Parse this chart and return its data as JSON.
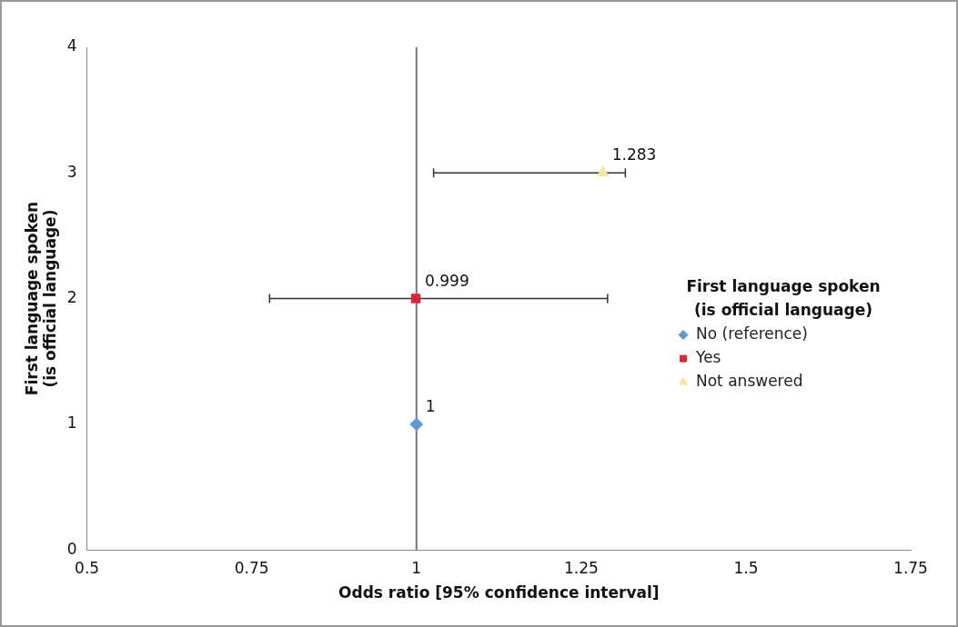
{
  "chart_data": {
    "type": "scatter",
    "xlabel": "Odds ratio [95% confidence interval]",
    "ylabel": "First language spoken\n(is official language)",
    "legend_title": "First language spoken\n(is official language)",
    "legend": "right",
    "xlim": [
      0.5,
      1.75
    ],
    "xticks": [
      0.5,
      0.75,
      1,
      1.25,
      1.5,
      1.75
    ],
    "ylim": [
      0,
      4
    ],
    "yticks": [
      0,
      1,
      2,
      3,
      4
    ],
    "grid": false,
    "ref_lines": [
      {
        "axis": "x",
        "value": 1,
        "color": "#777777"
      }
    ],
    "annotations": [
      {
        "text": "1",
        "x": 1,
        "y": 1
      },
      {
        "text": "0.999",
        "x": 0.999,
        "y": 2
      },
      {
        "text": "1.283",
        "x": 1.283,
        "y": 3
      }
    ],
    "series": [
      {
        "name": "No (reference)",
        "color": "#5b9bd5",
        "marker": "diamond",
        "x": [
          1
        ],
        "values": [
          1
        ]
      },
      {
        "name": "Yes",
        "color": "#d9283c",
        "marker": "square",
        "x": [
          0.999
        ],
        "values": [
          2
        ],
        "xerrors": [
          [
            0.777,
            1.29
          ]
        ]
      },
      {
        "name": "Not answered",
        "color": "#f5e79e",
        "marker": "triangle",
        "x": [
          1.283
        ],
        "values": [
          3
        ],
        "xerrors": [
          [
            1.026,
            1.317
          ]
        ]
      }
    ]
  }
}
